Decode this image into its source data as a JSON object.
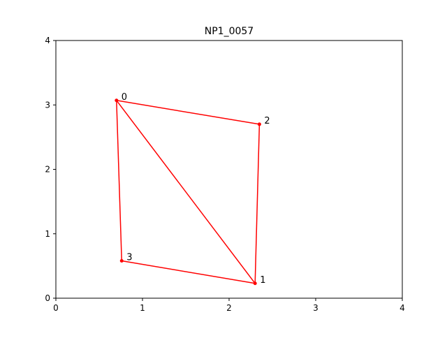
{
  "chart_data": {
    "type": "line",
    "title": "NP1_0057",
    "xlabel": "",
    "ylabel": "",
    "xlim": [
      0,
      4
    ],
    "ylim": [
      0,
      4
    ],
    "xticks": [
      0,
      1,
      2,
      3,
      4
    ],
    "yticks": [
      0,
      1,
      2,
      3,
      4
    ],
    "grid": false,
    "color": "#ff0000",
    "points": [
      {
        "label": "0",
        "x": 0.7,
        "y": 3.07
      },
      {
        "label": "1",
        "x": 2.3,
        "y": 0.23
      },
      {
        "label": "2",
        "x": 2.35,
        "y": 2.7
      },
      {
        "label": "3",
        "x": 0.76,
        "y": 0.58
      }
    ],
    "edges": [
      [
        0,
        2
      ],
      [
        2,
        1
      ],
      [
        1,
        3
      ],
      [
        3,
        0
      ],
      [
        0,
        1
      ]
    ]
  }
}
